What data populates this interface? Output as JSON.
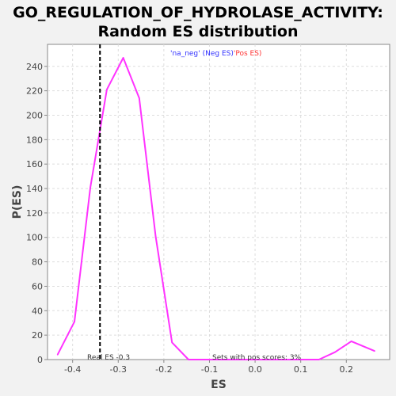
{
  "chart_data": {
    "type": "line",
    "title": "GO_REGULATION_OF_HYDROLASE_ACTIVITY:",
    "subtitle": "Random ES distribution",
    "xlabel": "ES",
    "ylabel": "P(ES)",
    "xlim": [
      -0.455,
      0.295
    ],
    "ylim": [
      0,
      258
    ],
    "x_ticks": [
      -0.4,
      -0.3,
      -0.2,
      -0.1,
      0.0,
      0.1,
      0.2
    ],
    "x_tick_labels": [
      "-0.4",
      "-0.3",
      "-0.2",
      "-0.1",
      "0.0",
      "0.1",
      "0.2"
    ],
    "y_ticks": [
      0,
      20,
      40,
      60,
      80,
      100,
      120,
      140,
      160,
      180,
      200,
      220,
      240
    ],
    "y_tick_labels": [
      "0",
      "20",
      "40",
      "60",
      "80",
      "100",
      "120",
      "140",
      "160",
      "180",
      "200",
      "220",
      "240"
    ],
    "grid": true,
    "series": [
      {
        "color": "#ff33ff",
        "x": [
          -0.433,
          -0.396,
          -0.361,
          -0.325,
          -0.289,
          -0.254,
          -0.218,
          -0.182,
          -0.146,
          -0.111,
          -0.075,
          -0.039,
          -0.004,
          0.032,
          0.068,
          0.104,
          0.14,
          0.175,
          0.211,
          0.262
        ],
        "y": [
          4,
          31,
          141,
          221,
          247,
          214,
          101,
          14,
          0,
          0,
          0,
          0,
          0,
          0,
          0,
          0,
          0,
          6,
          15,
          7
        ]
      }
    ],
    "real_es": -0.34,
    "legend": {
      "entries": [
        {
          "text": "'na_neg'",
          "color": "#3333ff"
        },
        {
          "text": "(Neg ES)",
          "color": "#3333ff"
        },
        {
          "text": "'Pos ES)",
          "color": "#ff3333"
        }
      ]
    },
    "annotations": {
      "real_es_label": "Real ES -0.3",
      "pos_scores_label": "Sets with pos scores: 3%"
    }
  }
}
